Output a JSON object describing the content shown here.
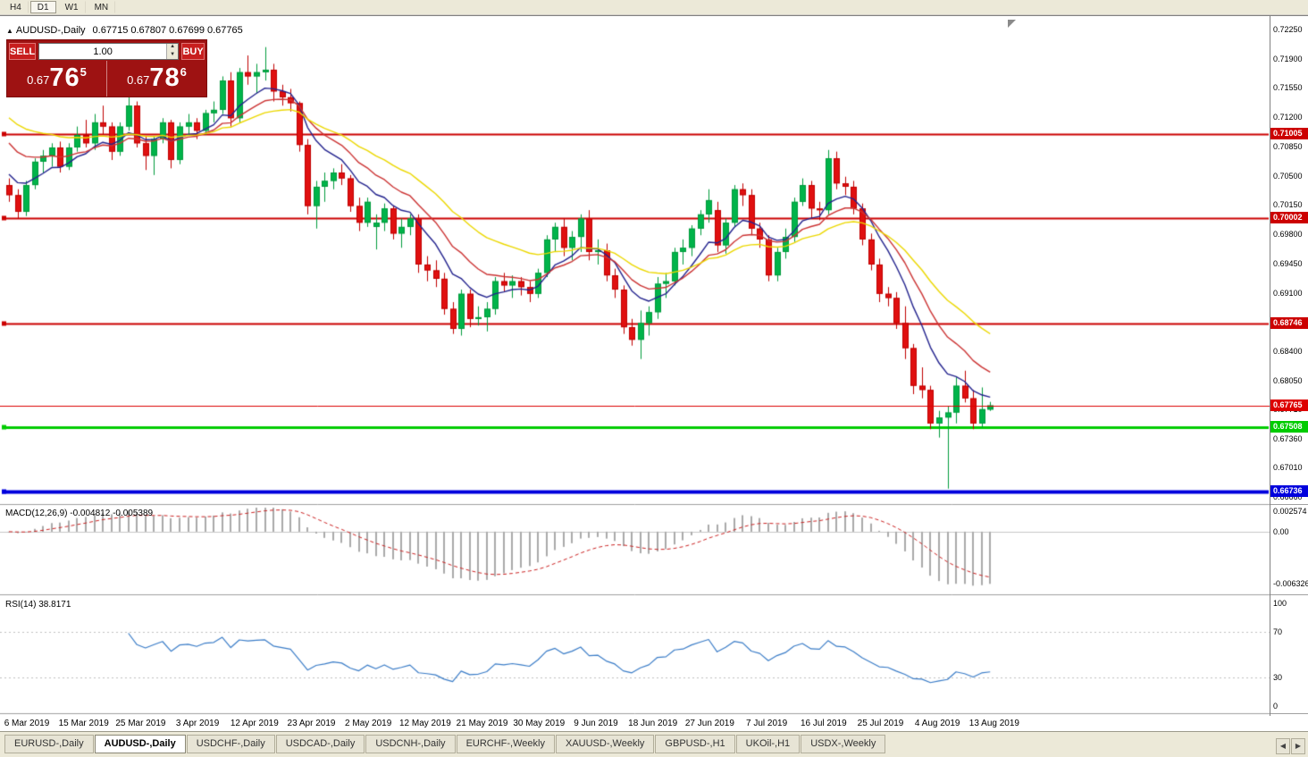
{
  "window": {
    "collapse_icon": "▲",
    "title_symbol": "AUDUSD-,Daily",
    "title_ohlc": "0.67715 0.67807 0.67699 0.67765"
  },
  "toolbar": {
    "timeframes": [
      {
        "label": "H4",
        "active": false
      },
      {
        "label": "D1",
        "active": true
      },
      {
        "label": "W1",
        "active": false
      },
      {
        "label": "MN",
        "active": false
      }
    ]
  },
  "one_click": {
    "sell_label": "SELL",
    "buy_label": "BUY",
    "volume": "1.00",
    "sell_price": {
      "prefix": "0.67",
      "big": "76",
      "sup": "5"
    },
    "buy_price": {
      "prefix": "0.67",
      "big": "78",
      "sup": "6"
    }
  },
  "levels": [
    {
      "price": 0.71005,
      "label": "0.71005",
      "color": "#cc0000",
      "width": 2
    },
    {
      "price": 0.70002,
      "label": "0.70002",
      "color": "#cc0000",
      "width": 2
    },
    {
      "price": 0.68746,
      "label": "0.68746",
      "color": "#cc0000",
      "width": 2
    },
    {
      "price": 0.67508,
      "label": "0.67508",
      "color": "#00cc00",
      "width": 3
    },
    {
      "price": 0.66736,
      "label": "0.66736",
      "color": "#0000dd",
      "width": 4
    }
  ],
  "bid_line": {
    "price": 0.67765,
    "label": "0.67765",
    "color": "#dd0000"
  },
  "price_axis": {
    "labels": [
      "0.72250",
      "0.71900",
      "0.71550",
      "0.71200",
      "0.70850",
      "0.70500",
      "0.70150",
      "0.69800",
      "0.69450",
      "0.69100",
      "0.68750",
      "0.68400",
      "0.68050",
      "0.67710",
      "0.67360",
      "0.67010",
      "0.66660"
    ]
  },
  "macd_panel": {
    "label": "MACD(12,26,9) -0.004812 -0.005389",
    "values": [
      -0.004812,
      -0.005389
    ],
    "axis_labels": [
      "0.002574",
      "0.00",
      "-0.006326"
    ],
    "max": 0.002574,
    "min": -0.006326
  },
  "rsi_panel": {
    "label": "RSI(14) 38.8171",
    "value": 38.8171,
    "axis_labels": [
      "100",
      "70",
      "30",
      "0"
    ],
    "guide_levels": [
      70,
      30
    ]
  },
  "time_axis": {
    "labels": [
      "6 Mar 2019",
      "15 Mar 2019",
      "25 Mar 2019",
      "3 Apr 2019",
      "12 Apr 2019",
      "23 Apr 2019",
      "2 May 2019",
      "12 May 2019",
      "21 May 2019",
      "30 May 2019",
      "9 Jun 2019",
      "18 Jun 2019",
      "27 Jun 2019",
      "7 Jul 2019",
      "16 Jul 2019",
      "25 Jul 2019",
      "4 Aug 2019",
      "13 Aug 2019"
    ]
  },
  "tabs": [
    {
      "label": "EURUSD-,Daily",
      "active": false
    },
    {
      "label": "AUDUSD-,Daily",
      "active": true
    },
    {
      "label": "USDCHF-,Daily",
      "active": false
    },
    {
      "label": "USDCAD-,Daily",
      "active": false
    },
    {
      "label": "USDCNH-,Daily",
      "active": false
    },
    {
      "label": "EURCHF-,Weekly",
      "active": false
    },
    {
      "label": "XAUUSD-,Weekly",
      "active": false
    },
    {
      "label": "GBPUSD-,H1",
      "active": false
    },
    {
      "label": "UKOil-,H1",
      "active": false
    },
    {
      "label": "USDX-,Weekly",
      "active": false
    }
  ],
  "tab_arrows": {
    "left": "◀",
    "right": "▶"
  },
  "chart_data": {
    "type": "candlestick",
    "symbol": "AUDUSD-",
    "timeframe": "Daily",
    "title": "AUDUSD-,Daily",
    "ohlc_current": {
      "open": 0.67715,
      "high": 0.67807,
      "low": 0.67699,
      "close": 0.67765
    },
    "price_range": [
      0.6665,
      0.7225
    ],
    "dates": [
      "2019-03-06",
      "2019-03-07",
      "2019-03-08",
      "2019-03-11",
      "2019-03-12",
      "2019-03-13",
      "2019-03-14",
      "2019-03-15",
      "2019-03-18",
      "2019-03-19",
      "2019-03-20",
      "2019-03-21",
      "2019-03-22",
      "2019-03-25",
      "2019-03-26",
      "2019-03-27",
      "2019-03-28",
      "2019-03-29",
      "2019-04-01",
      "2019-04-02",
      "2019-04-03",
      "2019-04-04",
      "2019-04-05",
      "2019-04-08",
      "2019-04-09",
      "2019-04-10",
      "2019-04-11",
      "2019-04-12",
      "2019-04-15",
      "2019-04-16",
      "2019-04-17",
      "2019-04-18",
      "2019-04-19",
      "2019-04-22",
      "2019-04-23",
      "2019-04-24",
      "2019-04-25",
      "2019-04-26",
      "2019-04-29",
      "2019-04-30",
      "2019-05-01",
      "2019-05-02",
      "2019-05-03",
      "2019-05-06",
      "2019-05-07",
      "2019-05-08",
      "2019-05-09",
      "2019-05-10",
      "2019-05-13",
      "2019-05-14",
      "2019-05-15",
      "2019-05-16",
      "2019-05-17",
      "2019-05-20",
      "2019-05-21",
      "2019-05-22",
      "2019-05-23",
      "2019-05-24",
      "2019-05-27",
      "2019-05-28",
      "2019-05-29",
      "2019-05-30",
      "2019-05-31",
      "2019-06-03",
      "2019-06-04",
      "2019-06-05",
      "2019-06-06",
      "2019-06-07",
      "2019-06-10",
      "2019-06-11",
      "2019-06-12",
      "2019-06-13",
      "2019-06-14",
      "2019-06-17",
      "2019-06-18",
      "2019-06-19",
      "2019-06-20",
      "2019-06-21",
      "2019-06-24",
      "2019-06-25",
      "2019-06-26",
      "2019-06-27",
      "2019-06-28",
      "2019-07-01",
      "2019-07-02",
      "2019-07-03",
      "2019-07-04",
      "2019-07-05",
      "2019-07-08",
      "2019-07-09",
      "2019-07-10",
      "2019-07-11",
      "2019-07-12",
      "2019-07-15",
      "2019-07-16",
      "2019-07-17",
      "2019-07-18",
      "2019-07-19",
      "2019-07-22",
      "2019-07-23",
      "2019-07-24",
      "2019-07-25",
      "2019-07-26",
      "2019-07-29",
      "2019-07-30",
      "2019-07-31",
      "2019-08-01",
      "2019-08-02",
      "2019-08-05",
      "2019-08-06",
      "2019-08-07",
      "2019-08-08",
      "2019-08-09",
      "2019-08-12",
      "2019-08-13",
      "2019-08-14"
    ],
    "candles": [
      [
        0.704,
        0.7048,
        0.702,
        0.7028
      ],
      [
        0.7028,
        0.7035,
        0.7,
        0.7008
      ],
      [
        0.7008,
        0.7045,
        0.7003,
        0.704
      ],
      [
        0.704,
        0.7072,
        0.7035,
        0.7068
      ],
      [
        0.7068,
        0.7082,
        0.7055,
        0.7075
      ],
      [
        0.7075,
        0.709,
        0.7062,
        0.7085
      ],
      [
        0.7085,
        0.7092,
        0.7055,
        0.7062
      ],
      [
        0.7062,
        0.709,
        0.7058,
        0.7085
      ],
      [
        0.7085,
        0.711,
        0.708,
        0.71
      ],
      [
        0.71,
        0.7118,
        0.7085,
        0.709
      ],
      [
        0.709,
        0.7125,
        0.7082,
        0.7115
      ],
      [
        0.7115,
        0.7135,
        0.71,
        0.711
      ],
      [
        0.711,
        0.7115,
        0.707,
        0.708
      ],
      [
        0.708,
        0.7115,
        0.7075,
        0.711
      ],
      [
        0.711,
        0.7148,
        0.7105,
        0.7135
      ],
      [
        0.7135,
        0.714,
        0.7085,
        0.709
      ],
      [
        0.709,
        0.7098,
        0.7058,
        0.7075
      ],
      [
        0.7075,
        0.7098,
        0.7052,
        0.7095
      ],
      [
        0.7095,
        0.712,
        0.709,
        0.7115
      ],
      [
        0.7115,
        0.7118,
        0.706,
        0.707
      ],
      [
        0.707,
        0.7115,
        0.7065,
        0.711
      ],
      [
        0.711,
        0.7125,
        0.71,
        0.7115
      ],
      [
        0.7115,
        0.712,
        0.7095,
        0.7105
      ],
      [
        0.7105,
        0.713,
        0.71,
        0.7126
      ],
      [
        0.7126,
        0.714,
        0.7115,
        0.713
      ],
      [
        0.713,
        0.717,
        0.7125,
        0.7165
      ],
      [
        0.7165,
        0.7175,
        0.711,
        0.712
      ],
      [
        0.712,
        0.718,
        0.7115,
        0.7175
      ],
      [
        0.7175,
        0.7195,
        0.716,
        0.717
      ],
      [
        0.717,
        0.7185,
        0.715,
        0.7175
      ],
      [
        0.7175,
        0.7205,
        0.7165,
        0.7178
      ],
      [
        0.7178,
        0.7185,
        0.714,
        0.7152
      ],
      [
        0.7152,
        0.716,
        0.7135,
        0.7145
      ],
      [
        0.7145,
        0.7155,
        0.7128,
        0.7138
      ],
      [
        0.7138,
        0.714,
        0.708,
        0.7088
      ],
      [
        0.7088,
        0.7095,
        0.7005,
        0.7015
      ],
      [
        0.7015,
        0.7045,
        0.6988,
        0.7038
      ],
      [
        0.7038,
        0.7055,
        0.702,
        0.7045
      ],
      [
        0.7045,
        0.706,
        0.7035,
        0.7055
      ],
      [
        0.7055,
        0.7065,
        0.704,
        0.7048
      ],
      [
        0.7048,
        0.7052,
        0.7008,
        0.7015
      ],
      [
        0.7015,
        0.7025,
        0.6985,
        0.6995
      ],
      [
        0.6995,
        0.7025,
        0.699,
        0.702
      ],
      [
        0.699,
        0.7005,
        0.6963,
        0.6995
      ],
      [
        0.6995,
        0.7018,
        0.6985,
        0.7012
      ],
      [
        0.7012,
        0.7015,
        0.6975,
        0.6982
      ],
      [
        0.6982,
        0.7,
        0.6965,
        0.699
      ],
      [
        0.699,
        0.7005,
        0.698,
        0.7
      ],
      [
        0.7,
        0.7005,
        0.6935,
        0.6945
      ],
      [
        0.6945,
        0.6955,
        0.6925,
        0.6938
      ],
      [
        0.6938,
        0.695,
        0.6918,
        0.6928
      ],
      [
        0.6928,
        0.6935,
        0.6885,
        0.6892
      ],
      [
        0.6892,
        0.69,
        0.6862,
        0.6868
      ],
      [
        0.6868,
        0.6915,
        0.686,
        0.691
      ],
      [
        0.691,
        0.6915,
        0.687,
        0.688
      ],
      [
        0.688,
        0.6895,
        0.6872,
        0.6882
      ],
      [
        0.6882,
        0.69,
        0.6865,
        0.6892
      ],
      [
        0.6892,
        0.693,
        0.6885,
        0.6925
      ],
      [
        0.6925,
        0.6935,
        0.6912,
        0.692
      ],
      [
        0.692,
        0.6932,
        0.6905,
        0.6925
      ],
      [
        0.6925,
        0.693,
        0.6908,
        0.6918
      ],
      [
        0.6918,
        0.6925,
        0.69,
        0.691
      ],
      [
        0.691,
        0.694,
        0.6905,
        0.6935
      ],
      [
        0.6935,
        0.698,
        0.693,
        0.6975
      ],
      [
        0.6975,
        0.6995,
        0.696,
        0.699
      ],
      [
        0.699,
        0.7,
        0.6955,
        0.6965
      ],
      [
        0.6965,
        0.6985,
        0.695,
        0.6978
      ],
      [
        0.6978,
        0.7005,
        0.696,
        0.7
      ],
      [
        0.7,
        0.701,
        0.695,
        0.696
      ],
      [
        0.696,
        0.6975,
        0.6945,
        0.6962
      ],
      [
        0.6962,
        0.697,
        0.6925,
        0.6932
      ],
      [
        0.6932,
        0.694,
        0.6905,
        0.6915
      ],
      [
        0.6915,
        0.692,
        0.6862,
        0.687
      ],
      [
        0.687,
        0.688,
        0.6848,
        0.6855
      ],
      [
        0.6855,
        0.689,
        0.6832,
        0.6875
      ],
      [
        0.6875,
        0.6895,
        0.686,
        0.6888
      ],
      [
        0.6888,
        0.693,
        0.688,
        0.6922
      ],
      [
        0.6922,
        0.6935,
        0.6905,
        0.6925
      ],
      [
        0.6925,
        0.6965,
        0.692,
        0.696
      ],
      [
        0.696,
        0.6975,
        0.6945,
        0.6965
      ],
      [
        0.6965,
        0.6992,
        0.6955,
        0.6988
      ],
      [
        0.6988,
        0.701,
        0.698,
        0.7005
      ],
      [
        0.7005,
        0.7035,
        0.6995,
        0.7022
      ],
      [
        0.701,
        0.702,
        0.696,
        0.6968
      ],
      [
        0.6968,
        0.7,
        0.6958,
        0.6995
      ],
      [
        0.6995,
        0.704,
        0.699,
        0.7035
      ],
      [
        0.7035,
        0.7042,
        0.7015,
        0.7028
      ],
      [
        0.7028,
        0.7035,
        0.698,
        0.6988
      ],
      [
        0.6988,
        0.6995,
        0.6965,
        0.6975
      ],
      [
        0.6975,
        0.698,
        0.6925,
        0.6932
      ],
      [
        0.6932,
        0.6965,
        0.6925,
        0.696
      ],
      [
        0.696,
        0.6988,
        0.6952,
        0.6978
      ],
      [
        0.6978,
        0.7025,
        0.6972,
        0.702
      ],
      [
        0.702,
        0.7048,
        0.7015,
        0.704
      ],
      [
        0.704,
        0.7045,
        0.7,
        0.7012
      ],
      [
        0.7012,
        0.702,
        0.6998,
        0.701
      ],
      [
        0.701,
        0.7082,
        0.7005,
        0.7072
      ],
      [
        0.7072,
        0.708,
        0.7035,
        0.7042
      ],
      [
        0.7042,
        0.705,
        0.7028,
        0.7038
      ],
      [
        0.7038,
        0.7045,
        0.7005,
        0.7012
      ],
      [
        0.7012,
        0.7018,
        0.6968,
        0.6975
      ],
      [
        0.6975,
        0.6982,
        0.6938,
        0.6945
      ],
      [
        0.6945,
        0.6952,
        0.69,
        0.691
      ],
      [
        0.691,
        0.6918,
        0.6895,
        0.6905
      ],
      [
        0.6905,
        0.6912,
        0.6868,
        0.6875
      ],
      [
        0.6875,
        0.6895,
        0.6832,
        0.6845
      ],
      [
        0.6845,
        0.685,
        0.679,
        0.68
      ],
      [
        0.68,
        0.6822,
        0.6785,
        0.6795
      ],
      [
        0.6795,
        0.68,
        0.6748,
        0.6755
      ],
      [
        0.6755,
        0.677,
        0.6738,
        0.6762
      ],
      [
        0.6762,
        0.6775,
        0.6677,
        0.6768
      ],
      [
        0.6768,
        0.681,
        0.6755,
        0.68
      ],
      [
        0.68,
        0.6818,
        0.678,
        0.6785
      ],
      [
        0.6785,
        0.6795,
        0.6748,
        0.6755
      ],
      [
        0.6755,
        0.6798,
        0.675,
        0.6772
      ],
      [
        0.67715,
        0.67807,
        0.67699,
        0.67765
      ]
    ],
    "moving_averages": [
      {
        "period": 8,
        "color": "#23238e",
        "seed": 0.706
      },
      {
        "period": 14,
        "color": "#cc3333",
        "seed": 0.71
      },
      {
        "period": 26,
        "color": "#ecd800",
        "seed": 0.7128
      }
    ],
    "macd": {
      "fast": 12,
      "slow": 26,
      "signal": 9,
      "histogram_color": "#aaaaaa",
      "signal_color": "#cc2222"
    },
    "rsi": {
      "period": 14,
      "color": "#3b7dc8"
    },
    "colors": {
      "bull": "#00b44a",
      "bull_border": "#009b3c",
      "bear": "#e01010",
      "bear_border": "#c00000"
    }
  }
}
